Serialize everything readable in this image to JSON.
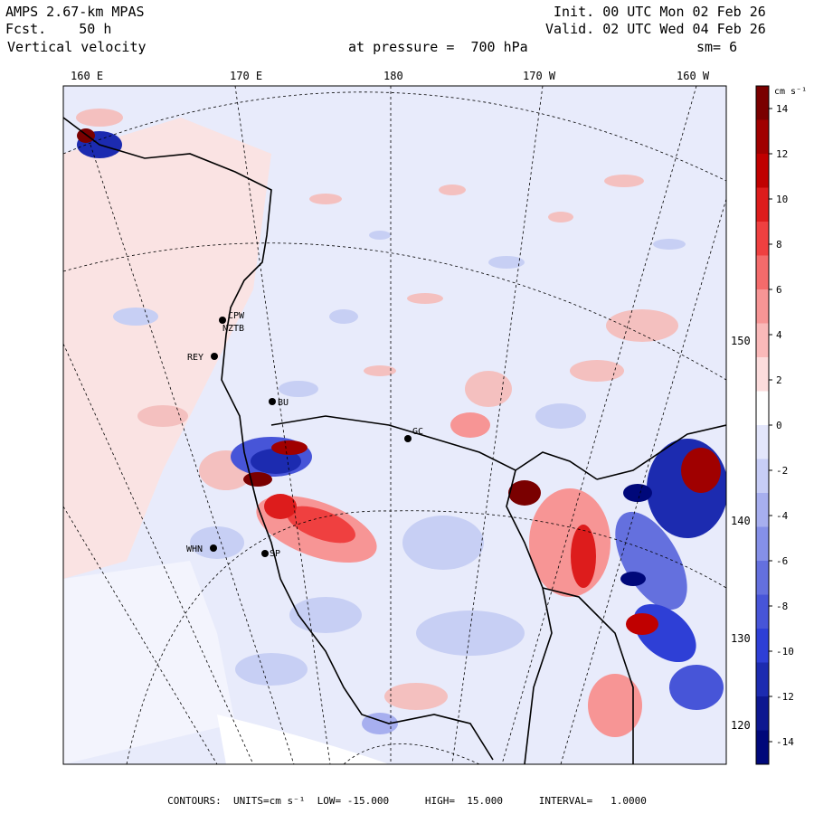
{
  "header": {
    "model_title": "AMPS 2.67-km MPAS",
    "fcst_label": "Fcst.",
    "fcst_value": "50 h",
    "field_name": "Vertical velocity",
    "init_label": "Init.",
    "init_value": "00 UTC Mon 02 Feb 26",
    "valid_label": "Valid.",
    "valid_value": "02 UTC Wed 04 Feb 26",
    "pressure_text": "at pressure =  700 hPa",
    "smoothing_text": "sm= 6"
  },
  "map": {
    "top_longitude_labels": [
      "160 E",
      "170 E",
      "180",
      "170 W",
      "160 W"
    ],
    "right_latitude_labels": [
      "150 W",
      "140 W",
      "130 W",
      "120 W"
    ],
    "stations": [
      "CPW",
      "NZTB",
      "REY",
      "BU",
      "GC",
      "WHN",
      "SP"
    ],
    "colors": {
      "strong_positive": "#8b0000",
      "positive": "#e8262a",
      "weak_positive": "#f4c0bf",
      "near_zero": "#ffffff",
      "weak_negative": "#c7cff4",
      "negative": "#2e3fd6",
      "strong_negative": "#00087a"
    }
  },
  "colorbar": {
    "units": "cm s⁻¹",
    "tick_labels": [
      "14",
      "12",
      "10",
      "8",
      "6",
      "4",
      "2",
      "0",
      "-2",
      "-4",
      "-6",
      "-8",
      "-10",
      "-12",
      "-14"
    ],
    "color_stops": [
      "#7a0000",
      "#a00000",
      "#c00000",
      "#dd1c1c",
      "#ef4040",
      "#f46b6b",
      "#f79595",
      "#fab9b9",
      "#fcdcdc",
      "#ffffff",
      "#e3e6fb",
      "#c7cdf6",
      "#a7afef",
      "#8590e8",
      "#6470de",
      "#4755d8",
      "#2e3fd6",
      "#1c2bb0",
      "#0d1790",
      "#00087a"
    ]
  },
  "footer": {
    "text": "CONTOURS:  UNITS=cm s⁻¹  LOW= -15.000      HIGH=  15.000      INTERVAL=   1.0000"
  }
}
